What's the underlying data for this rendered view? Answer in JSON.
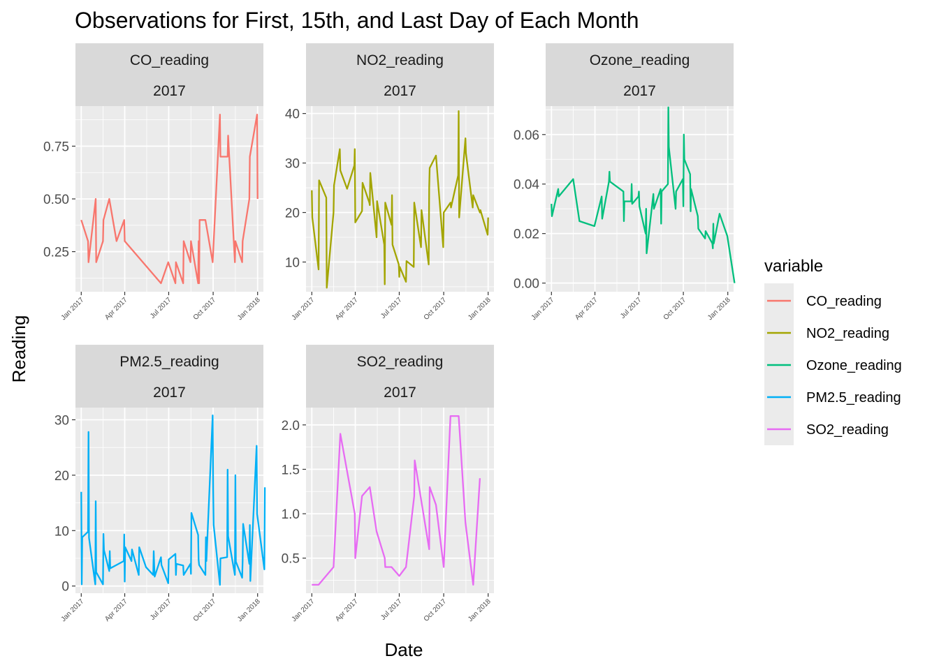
{
  "chart_data": {
    "type": "line",
    "title": "Observations for First, 15th, and Last Day of Each Month",
    "xlabel": "Date",
    "ylabel": "Reading",
    "x_ticks": [
      "Jan 2017",
      "Apr 2017",
      "Jul 2017",
      "Oct 2017",
      "Jan 2018"
    ],
    "xlim": [
      "2016-12-20",
      "2018-01-13"
    ],
    "grid": true,
    "legend": {
      "title": "variable",
      "position": "right",
      "entries": [
        {
          "label": "CO_reading",
          "color": "#F8766D"
        },
        {
          "label": "NO2_reading",
          "color": "#A3A500"
        },
        {
          "label": "Ozone_reading",
          "color": "#00BF7D"
        },
        {
          "label": "PM2.5_reading",
          "color": "#00B0F6"
        },
        {
          "label": "SO2_reading",
          "color": "#E76BF3"
        }
      ]
    },
    "panels": [
      {
        "name": "CO_reading",
        "year": "2017",
        "color": "#F8766D",
        "ylim": [
          0.06,
          0.94
        ],
        "yticks": [
          {
            "value": 0.25,
            "label": "0.25"
          },
          {
            "value": 0.5,
            "label": "0.50"
          },
          {
            "value": 0.75,
            "label": "0.75"
          }
        ],
        "points": [
          [
            "2017-01-01",
            0.4
          ],
          [
            "2017-01-15",
            0.3
          ],
          [
            "2017-01-16",
            0.2
          ],
          [
            "2017-01-31",
            0.5
          ],
          [
            "2017-02-01",
            0.2
          ],
          [
            "2017-02-15",
            0.3
          ],
          [
            "2017-02-16",
            0.4
          ],
          [
            "2017-02-28",
            0.5
          ],
          [
            "2017-03-15",
            0.3
          ],
          [
            "2017-03-31",
            0.4
          ],
          [
            "2017-04-01",
            0.3
          ],
          [
            "2017-06-15",
            0.1
          ],
          [
            "2017-06-30",
            0.2
          ],
          [
            "2017-07-15",
            0.1
          ],
          [
            "2017-07-16",
            0.2
          ],
          [
            "2017-07-31",
            0.1
          ],
          [
            "2017-08-01",
            0.3
          ],
          [
            "2017-08-15",
            0.2
          ],
          [
            "2017-08-16",
            0.3
          ],
          [
            "2017-08-31",
            0.1
          ],
          [
            "2017-09-01",
            0.3
          ],
          [
            "2017-09-02",
            0.1
          ],
          [
            "2017-09-03",
            0.4
          ],
          [
            "2017-09-15",
            0.4
          ],
          [
            "2017-09-30",
            0.2
          ],
          [
            "2017-10-15",
            0.9
          ],
          [
            "2017-10-16",
            0.7
          ],
          [
            "2017-10-31",
            0.7
          ],
          [
            "2017-11-01",
            0.8
          ],
          [
            "2017-11-15",
            0.2
          ],
          [
            "2017-11-16",
            0.3
          ],
          [
            "2017-11-30",
            0.2
          ],
          [
            "2017-12-01",
            0.3
          ],
          [
            "2017-12-15",
            0.5
          ],
          [
            "2017-12-16",
            0.7
          ],
          [
            "2017-12-31",
            0.9
          ],
          [
            "2018-01-01",
            0.5
          ]
        ]
      },
      {
        "name": "NO2_reading",
        "year": "2017",
        "color": "#A3A500",
        "ylim": [
          4.0,
          41.5
        ],
        "yticks": [
          {
            "value": 10,
            "label": "10"
          },
          {
            "value": 20,
            "label": "20"
          },
          {
            "value": 30,
            "label": "30"
          },
          {
            "value": 40,
            "label": "40"
          }
        ],
        "points": [
          [
            "2017-01-01",
            24.5
          ],
          [
            "2017-01-02",
            19
          ],
          [
            "2017-01-15",
            8.5
          ],
          [
            "2017-01-16",
            26.5
          ],
          [
            "2017-01-31",
            23
          ],
          [
            "2017-02-01",
            4.8
          ],
          [
            "2017-02-15",
            20
          ],
          [
            "2017-02-16",
            25.5
          ],
          [
            "2017-02-28",
            32.8
          ],
          [
            "2017-03-01",
            28.5
          ],
          [
            "2017-03-15",
            24.8
          ],
          [
            "2017-03-30",
            29.5
          ],
          [
            "2017-03-31",
            32.8
          ],
          [
            "2017-04-01",
            18
          ],
          [
            "2017-04-15",
            20.3
          ],
          [
            "2017-04-16",
            26
          ],
          [
            "2017-04-30",
            22
          ],
          [
            "2017-05-01",
            21.5
          ],
          [
            "2017-05-02",
            28
          ],
          [
            "2017-05-15",
            15
          ],
          [
            "2017-05-16",
            22.3
          ],
          [
            "2017-05-31",
            13.5
          ],
          [
            "2017-06-01",
            5.5
          ],
          [
            "2017-06-02",
            22
          ],
          [
            "2017-06-15",
            17.5
          ],
          [
            "2017-06-16",
            23.5
          ],
          [
            "2017-06-17",
            13.5
          ],
          [
            "2017-06-30",
            9.5
          ],
          [
            "2017-07-01",
            7
          ],
          [
            "2017-07-02",
            9
          ],
          [
            "2017-07-15",
            6
          ],
          [
            "2017-07-16",
            10.2
          ],
          [
            "2017-07-31",
            9
          ],
          [
            "2017-08-01",
            22
          ],
          [
            "2017-08-15",
            13
          ],
          [
            "2017-08-16",
            20.5
          ],
          [
            "2017-08-31",
            9.5
          ],
          [
            "2017-09-01",
            25
          ],
          [
            "2017-09-02",
            29
          ],
          [
            "2017-09-15",
            31.5
          ],
          [
            "2017-09-30",
            13
          ],
          [
            "2017-10-01",
            20
          ],
          [
            "2017-10-15",
            22
          ],
          [
            "2017-10-16",
            21
          ],
          [
            "2017-10-31",
            27.5
          ],
          [
            "2017-11-01",
            40.5
          ],
          [
            "2017-11-02",
            19
          ],
          [
            "2017-11-15",
            35
          ],
          [
            "2017-11-16",
            32
          ],
          [
            "2017-11-30",
            21
          ],
          [
            "2017-12-01",
            23.5
          ],
          [
            "2017-12-15",
            20
          ],
          [
            "2017-12-16",
            20.5
          ],
          [
            "2017-12-31",
            15.5
          ],
          [
            "2018-01-01",
            19
          ]
        ]
      },
      {
        "name": "Ozone_reading",
        "year": "2017",
        "color": "#00BF7D",
        "ylim": [
          -0.0035,
          0.0715
        ],
        "yticks": [
          {
            "value": 0.0,
            "label": "0.00"
          },
          {
            "value": 0.02,
            "label": "0.02"
          },
          {
            "value": 0.04,
            "label": "0.04"
          },
          {
            "value": 0.06,
            "label": "0.06"
          }
        ],
        "points": [
          [
            "2017-01-01",
            0.032
          ],
          [
            "2017-01-02",
            0.027
          ],
          [
            "2017-01-15",
            0.038
          ],
          [
            "2017-01-16",
            0.035
          ],
          [
            "2017-02-15",
            0.042
          ],
          [
            "2017-02-28",
            0.025
          ],
          [
            "2017-03-31",
            0.023
          ],
          [
            "2017-04-15",
            0.035
          ],
          [
            "2017-04-16",
            0.026
          ],
          [
            "2017-04-30",
            0.041
          ],
          [
            "2017-05-01",
            0.045
          ],
          [
            "2017-05-02",
            0.041
          ],
          [
            "2017-05-30",
            0.037
          ],
          [
            "2017-05-31",
            0.025
          ],
          [
            "2017-06-01",
            0.033
          ],
          [
            "2017-06-15",
            0.033
          ],
          [
            "2017-06-16",
            0.04
          ],
          [
            "2017-06-17",
            0.032
          ],
          [
            "2017-06-30",
            0.035
          ],
          [
            "2017-07-01",
            0.037
          ],
          [
            "2017-07-02",
            0.031
          ],
          [
            "2017-07-15",
            0.02
          ],
          [
            "2017-07-16",
            0.03
          ],
          [
            "2017-07-17",
            0.012
          ],
          [
            "2017-07-31",
            0.036
          ],
          [
            "2017-08-01",
            0.03
          ],
          [
            "2017-08-15",
            0.038
          ],
          [
            "2017-08-16",
            0.024
          ],
          [
            "2017-08-17",
            0.037
          ],
          [
            "2017-08-30",
            0.04
          ],
          [
            "2017-08-31",
            0.071
          ],
          [
            "2017-09-01",
            0.055
          ],
          [
            "2017-09-15",
            0.03
          ],
          [
            "2017-09-16",
            0.037
          ],
          [
            "2017-09-30",
            0.042
          ],
          [
            "2017-10-01",
            0.031
          ],
          [
            "2017-10-02",
            0.06
          ],
          [
            "2017-10-03",
            0.05
          ],
          [
            "2017-10-15",
            0.044
          ],
          [
            "2017-10-16",
            0.029
          ],
          [
            "2017-10-17",
            0.038
          ],
          [
            "2017-10-31",
            0.027
          ],
          [
            "2017-11-01",
            0.022
          ],
          [
            "2017-11-15",
            0.018
          ],
          [
            "2017-11-16",
            0.021
          ],
          [
            "2017-11-30",
            0.016
          ],
          [
            "2017-12-01",
            0.014
          ],
          [
            "2017-12-02",
            0.024
          ],
          [
            "2017-12-03",
            0.016
          ],
          [
            "2017-12-15",
            0.028
          ],
          [
            "2017-12-31",
            0.019
          ],
          [
            "2018-01-15",
            0.0
          ]
        ]
      },
      {
        "name": "PM2.5_reading",
        "year": "2017",
        "color": "#00B0F6",
        "ylim": [
          -1.3,
          32.2
        ],
        "yticks": [
          {
            "value": 0,
            "label": "0"
          },
          {
            "value": 10,
            "label": "10"
          },
          {
            "value": 20,
            "label": "20"
          },
          {
            "value": 30,
            "label": "30"
          }
        ],
        "points": [
          [
            "2017-01-01",
            17
          ],
          [
            "2017-01-02",
            0.3
          ],
          [
            "2017-01-03",
            8.8
          ],
          [
            "2017-01-15",
            9.8
          ],
          [
            "2017-01-16",
            27.8
          ],
          [
            "2017-01-17",
            8.7
          ],
          [
            "2017-01-30",
            0.3
          ],
          [
            "2017-01-31",
            15.3
          ],
          [
            "2017-02-01",
            2.5
          ],
          [
            "2017-02-15",
            0.3
          ],
          [
            "2017-02-16",
            9.4
          ],
          [
            "2017-02-17",
            6.5
          ],
          [
            "2017-02-28",
            2.7
          ],
          [
            "2017-03-01",
            6.3
          ],
          [
            "2017-03-02",
            3.2
          ],
          [
            "2017-03-15",
            3.8
          ],
          [
            "2017-03-30",
            4.5
          ],
          [
            "2017-03-31",
            9.3
          ],
          [
            "2017-04-01",
            0.8
          ],
          [
            "2017-04-02",
            7
          ],
          [
            "2017-04-15",
            4.5
          ],
          [
            "2017-04-16",
            6.6
          ],
          [
            "2017-04-30",
            2
          ],
          [
            "2017-05-01",
            7
          ],
          [
            "2017-05-15",
            3.4
          ],
          [
            "2017-05-30",
            2
          ],
          [
            "2017-05-31",
            6.3
          ],
          [
            "2017-06-01",
            3.7
          ],
          [
            "2017-06-02",
            1.7
          ],
          [
            "2017-06-15",
            5.2
          ],
          [
            "2017-06-16",
            3.8
          ],
          [
            "2017-06-30",
            0.5
          ],
          [
            "2017-07-01",
            4.8
          ],
          [
            "2017-07-15",
            5.8
          ],
          [
            "2017-07-16",
            2
          ],
          [
            "2017-07-17",
            4
          ],
          [
            "2017-07-31",
            3.7
          ],
          [
            "2017-08-01",
            2
          ],
          [
            "2017-08-15",
            4
          ],
          [
            "2017-08-16",
            2.2
          ],
          [
            "2017-08-17",
            13.2
          ],
          [
            "2017-08-31",
            9.2
          ],
          [
            "2017-09-01",
            4.7
          ],
          [
            "2017-09-02",
            3.8
          ],
          [
            "2017-09-15",
            2
          ],
          [
            "2017-09-16",
            8.8
          ],
          [
            "2017-09-17",
            4.5
          ],
          [
            "2017-09-30",
            30.8
          ],
          [
            "2017-10-01",
            17.5
          ],
          [
            "2017-10-02",
            11
          ],
          [
            "2017-10-15",
            0.2
          ],
          [
            "2017-10-16",
            5
          ],
          [
            "2017-10-30",
            5.2
          ],
          [
            "2017-10-31",
            21
          ],
          [
            "2017-11-01",
            9
          ],
          [
            "2017-11-15",
            2
          ],
          [
            "2017-11-16",
            20
          ],
          [
            "2017-11-17",
            4.4
          ],
          [
            "2017-11-30",
            1.5
          ],
          [
            "2017-12-01",
            4.5
          ],
          [
            "2017-12-02",
            11.2
          ],
          [
            "2017-12-15",
            4
          ],
          [
            "2017-12-16",
            11
          ],
          [
            "2017-12-17",
            0.9
          ],
          [
            "2017-12-30",
            25.3
          ],
          [
            "2017-12-31",
            13
          ],
          [
            "2018-01-15",
            3
          ],
          [
            "2018-01-16",
            17.8
          ]
        ]
      },
      {
        "name": "SO2_reading",
        "year": "2017",
        "color": "#E76BF3",
        "ylim": [
          0.105,
          2.195
        ],
        "yticks": [
          {
            "value": 0.5,
            "label": "0.5"
          },
          {
            "value": 1.0,
            "label": "1.0"
          },
          {
            "value": 1.5,
            "label": "1.5"
          },
          {
            "value": 2.0,
            "label": "2.0"
          }
        ],
        "points": [
          [
            "2017-01-01",
            0.2
          ],
          [
            "2017-01-15",
            0.2
          ],
          [
            "2017-02-15",
            0.4
          ],
          [
            "2017-03-01",
            1.9
          ],
          [
            "2017-03-31",
            1
          ],
          [
            "2017-04-01",
            0.5
          ],
          [
            "2017-04-15",
            1.2
          ],
          [
            "2017-05-01",
            1.3
          ],
          [
            "2017-05-15",
            0.8
          ],
          [
            "2017-06-01",
            0.5
          ],
          [
            "2017-06-02",
            0.4
          ],
          [
            "2017-06-15",
            0.4
          ],
          [
            "2017-07-01",
            0.3
          ],
          [
            "2017-07-15",
            0.4
          ],
          [
            "2017-08-01",
            1.2
          ],
          [
            "2017-08-02",
            1.6
          ],
          [
            "2017-09-01",
            0.6
          ],
          [
            "2017-09-02",
            1.3
          ],
          [
            "2017-09-15",
            1.1
          ],
          [
            "2017-10-01",
            0.4
          ],
          [
            "2017-10-15",
            2.1
          ],
          [
            "2017-11-01",
            2.1
          ],
          [
            "2017-11-15",
            0.9
          ],
          [
            "2017-12-01",
            0.2
          ],
          [
            "2017-12-15",
            1.4
          ]
        ]
      }
    ]
  }
}
